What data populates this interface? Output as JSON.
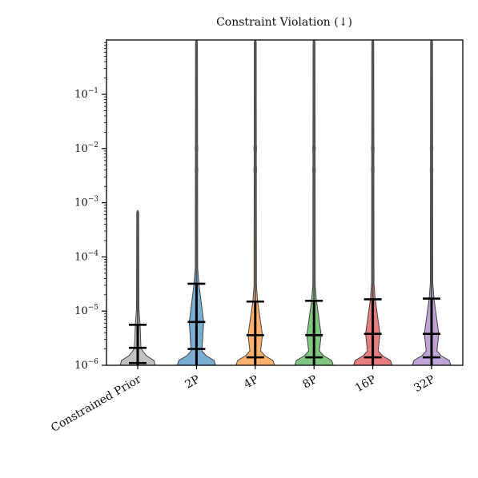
{
  "chart_data": {
    "type": "violin",
    "title": "Constraint Violation (↓)",
    "xlabel": "",
    "ylabel": "",
    "y_scale": "log",
    "ylim": [
      1e-06,
      1
    ],
    "y_ticks": [
      {
        "value": 1e-06,
        "base": "10",
        "exp": "−6"
      },
      {
        "value": 1e-05,
        "base": "10",
        "exp": "−5"
      },
      {
        "value": 0.0001,
        "base": "10",
        "exp": "−4"
      },
      {
        "value": 0.001,
        "base": "10",
        "exp": "−3"
      },
      {
        "value": 0.01,
        "base": "10",
        "exp": "−2"
      },
      {
        "value": 0.1,
        "base": "10",
        "exp": "−1"
      }
    ],
    "categories": [
      "Constrained Prior",
      "2P",
      "4P",
      "8P",
      "16P",
      "32P"
    ],
    "grid": false,
    "legend": "none",
    "series": [
      {
        "category": "Constrained Prior",
        "color": "#9a9a9a",
        "max": 0.00072,
        "upper": 5.6e-06,
        "mid": 2.1e-06,
        "lower": 1.1e-06
      },
      {
        "category": "2P",
        "color": "#1f77b4",
        "max": 1.0,
        "upper": 3.2e-05,
        "mid": 6.3e-06,
        "lower": 2e-06
      },
      {
        "category": "4P",
        "color": "#ff7f0e",
        "max": 1.0,
        "upper": 1.5e-05,
        "mid": 3.6e-06,
        "lower": 1.4e-06
      },
      {
        "category": "8P",
        "color": "#2ca02c",
        "max": 1.0,
        "upper": 1.55e-05,
        "mid": 3.6e-06,
        "lower": 1.4e-06
      },
      {
        "category": "16P",
        "color": "#d62728",
        "max": 1.0,
        "upper": 1.65e-05,
        "mid": 3.8e-06,
        "lower": 1.4e-06
      },
      {
        "category": "32P",
        "color": "#9467bd",
        "max": 1.0,
        "upper": 1.7e-05,
        "mid": 3.8e-06,
        "lower": 1.4e-06
      }
    ]
  }
}
